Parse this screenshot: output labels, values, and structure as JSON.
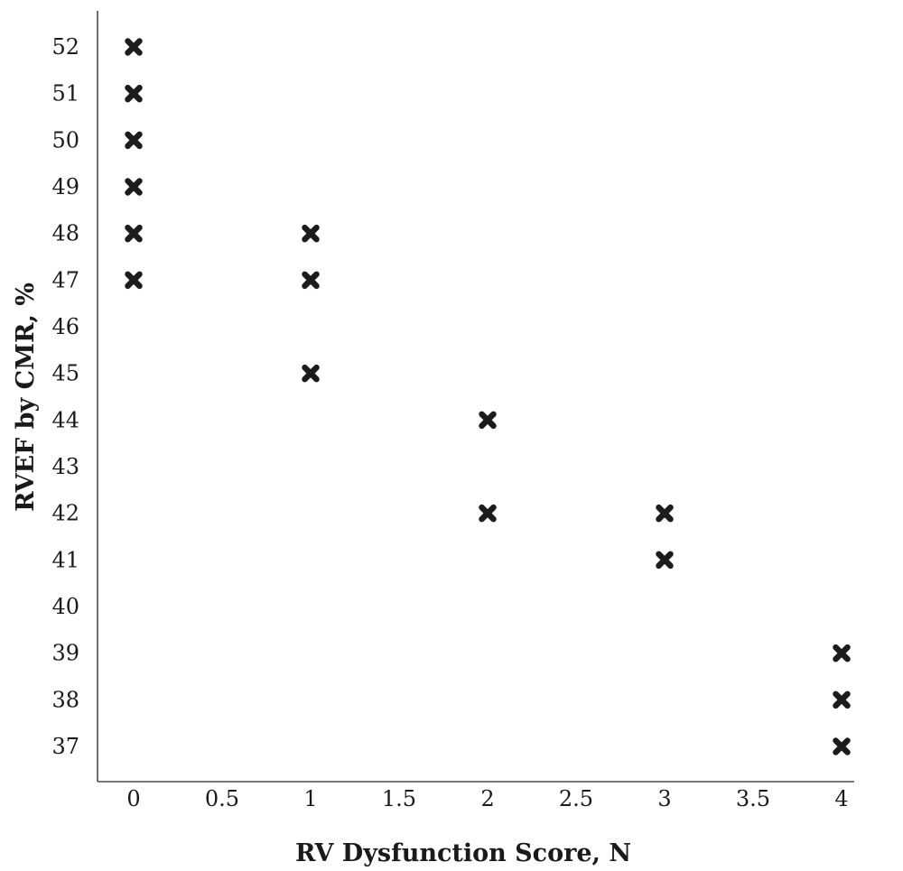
{
  "chart_data": {
    "type": "scatter",
    "title": "",
    "xlabel": "RV Dysfunction Score, N",
    "ylabel": "RVEF by CMR, %",
    "xlim": [
      -0.1,
      4.1
    ],
    "ylim": [
      36.2,
      52.4
    ],
    "x_ticks": [
      "0",
      "0.5",
      "1",
      "1.5",
      "2",
      "2.5",
      "3",
      "3.5",
      "4"
    ],
    "y_ticks": [
      "37",
      "38",
      "39",
      "40",
      "41",
      "42",
      "43",
      "44",
      "45",
      "46",
      "47",
      "48",
      "49",
      "50",
      "51",
      "52"
    ],
    "grid": false,
    "marker": "x",
    "marker_color": "#1c1c1c",
    "points": [
      {
        "x": 0,
        "y": 52
      },
      {
        "x": 0,
        "y": 51
      },
      {
        "x": 0,
        "y": 50
      },
      {
        "x": 0,
        "y": 49
      },
      {
        "x": 0,
        "y": 48
      },
      {
        "x": 0,
        "y": 47
      },
      {
        "x": 1,
        "y": 48
      },
      {
        "x": 1,
        "y": 47
      },
      {
        "x": 1,
        "y": 45
      },
      {
        "x": 2,
        "y": 44
      },
      {
        "x": 2,
        "y": 42
      },
      {
        "x": 3,
        "y": 42
      },
      {
        "x": 3,
        "y": 41
      },
      {
        "x": 4,
        "y": 39
      },
      {
        "x": 4,
        "y": 38
      },
      {
        "x": 4,
        "y": 37
      }
    ]
  }
}
